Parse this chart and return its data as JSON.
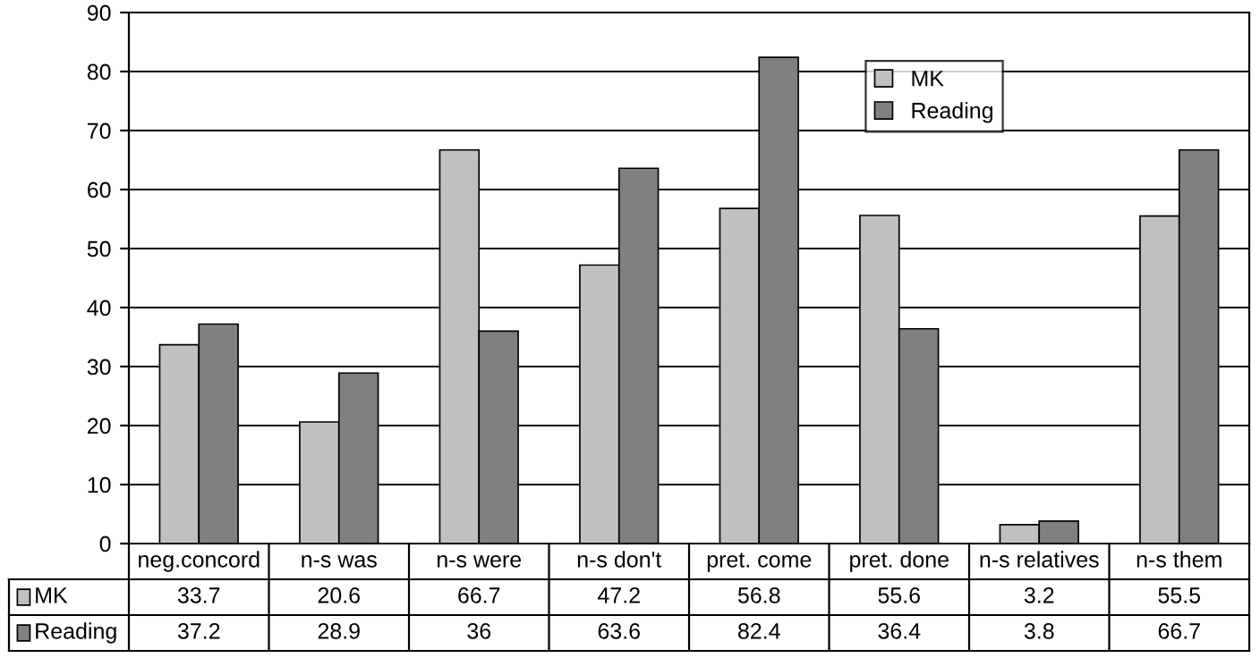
{
  "chart_data": {
    "type": "bar",
    "categories": [
      "neg.concord",
      "n-s was",
      "n-s were",
      "n-s don't",
      "pret. come",
      "pret. done",
      "n-s relatives",
      "n-s them"
    ],
    "series": [
      {
        "name": "MK",
        "color": "#c0c0c0",
        "values": [
          33.7,
          20.6,
          66.7,
          47.2,
          56.8,
          55.6,
          3.2,
          55.5
        ]
      },
      {
        "name": "Reading",
        "color": "#808080",
        "values": [
          37.2,
          28.9,
          36,
          63.6,
          82.4,
          36.4,
          3.8,
          66.7
        ]
      }
    ],
    "ylim": [
      0,
      90
    ],
    "yticks": [
      0,
      10,
      20,
      30,
      40,
      50,
      60,
      70,
      80,
      90
    ],
    "grid": "y",
    "legend": "top right",
    "data_labels": true
  }
}
